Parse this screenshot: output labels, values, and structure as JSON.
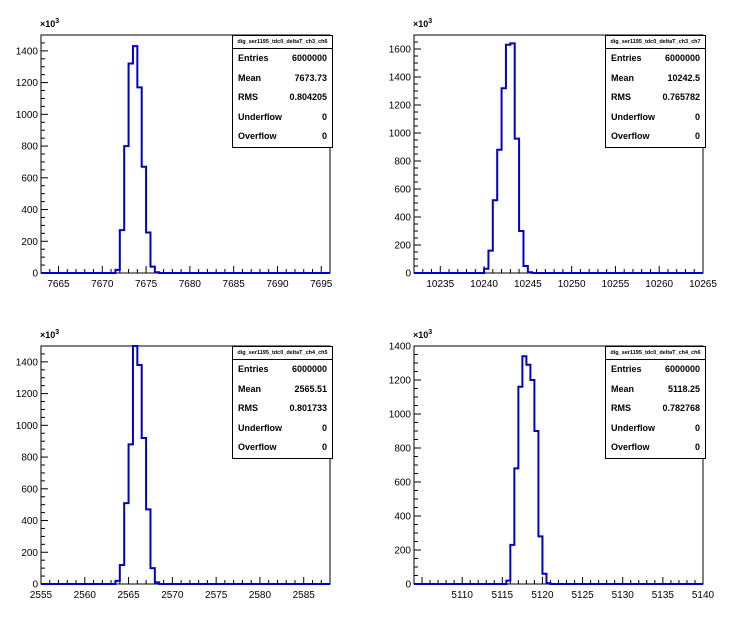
{
  "chart_data": [
    {
      "type": "histogram",
      "title": "dig_ser1195_tdc0_deltaT_ch3_ch6",
      "stats": [
        [
          "Entries",
          "6000000"
        ],
        [
          "Mean",
          "7673.73"
        ],
        [
          "RMS",
          "0.804205"
        ],
        [
          "Underflow",
          "0"
        ],
        [
          "Overflow",
          "0"
        ]
      ],
      "y_multiplier": "×10",
      "y_multiplier_exp": "3",
      "xlim": [
        7663,
        7696
      ],
      "ylim": [
        0,
        1500
      ],
      "xticks": [
        "7665",
        "7670",
        "7675",
        "7680",
        "7685",
        "7690",
        "7695"
      ],
      "yticks": [
        "0",
        "200",
        "400",
        "600",
        "800",
        "1000",
        "1200",
        "1400"
      ],
      "bin_width": 0.5,
      "bin_start": 7671.5,
      "values": [
        20,
        270,
        800,
        1320,
        1430,
        1170,
        670,
        255,
        40,
        5
      ],
      "color": "#0000cc"
    },
    {
      "type": "histogram",
      "title": "dig_ser1195_tdc0_deltaT_ch3_ch7",
      "stats": [
        [
          "Entries",
          "6000000"
        ],
        [
          "Mean",
          "10242.5"
        ],
        [
          "RMS",
          "0.765782"
        ],
        [
          "Underflow",
          "0"
        ],
        [
          "Overflow",
          "0"
        ]
      ],
      "y_multiplier": "×10",
      "y_multiplier_exp": "3",
      "xlim": [
        10232,
        10265
      ],
      "ylim": [
        0,
        1700
      ],
      "xticks": [
        "10235",
        "10240",
        "10245",
        "10250",
        "10255",
        "10260",
        "10265"
      ],
      "yticks": [
        "0",
        "200",
        "400",
        "600",
        "800",
        "1000",
        "1200",
        "1400",
        "1600"
      ],
      "bin_width": 0.5,
      "bin_start": 10240.0,
      "values": [
        30,
        160,
        520,
        880,
        1320,
        1630,
        1640,
        960,
        300,
        50,
        5
      ],
      "color": "#0000cc"
    },
    {
      "type": "histogram",
      "title": "dig_ser1195_tdc0_deltaT_ch4_ch5",
      "stats": [
        [
          "Entries",
          "6000000"
        ],
        [
          "Mean",
          "2565.51"
        ],
        [
          "RMS",
          "0.801733"
        ],
        [
          "Underflow",
          "0"
        ],
        [
          "Overflow",
          "0"
        ]
      ],
      "y_multiplier": "×10",
      "y_multiplier_exp": "3",
      "xlim": [
        2555,
        2588
      ],
      "ylim": [
        0,
        1500
      ],
      "xticks": [
        "2555",
        "2560",
        "2565",
        "2570",
        "2575",
        "2580",
        "2585"
      ],
      "yticks": [
        "0",
        "200",
        "400",
        "600",
        "800",
        "1000",
        "1200",
        "1400"
      ],
      "bin_width": 0.5,
      "bin_start": 2563.5,
      "values": [
        20,
        120,
        510,
        880,
        1500,
        1380,
        920,
        470,
        100,
        10
      ],
      "color": "#0000cc"
    },
    {
      "type": "histogram",
      "title": "dig_ser1195_tdc0_deltaT_ch4_ch6",
      "stats": [
        [
          "Entries",
          "6000000"
        ],
        [
          "Mean",
          "5118.25"
        ],
        [
          "RMS",
          "0.782768"
        ],
        [
          "Underflow",
          "0"
        ],
        [
          "Overflow",
          "0"
        ]
      ],
      "y_multiplier": "×10",
      "y_multiplier_exp": "3",
      "xlim": [
        5104,
        5140
      ],
      "ylim": [
        0,
        1400
      ],
      "xticks": [
        "5110",
        "5115",
        "5120",
        "5125",
        "5130",
        "5135",
        "5140"
      ],
      "yticks": [
        "0",
        "200",
        "400",
        "600",
        "800",
        "1000",
        "1200",
        "1400"
      ],
      "bin_width": 0.5,
      "bin_start": 5115.5,
      "values": [
        20,
        230,
        680,
        1160,
        1340,
        1290,
        1200,
        900,
        280,
        60,
        5
      ],
      "color": "#0000cc"
    }
  ]
}
